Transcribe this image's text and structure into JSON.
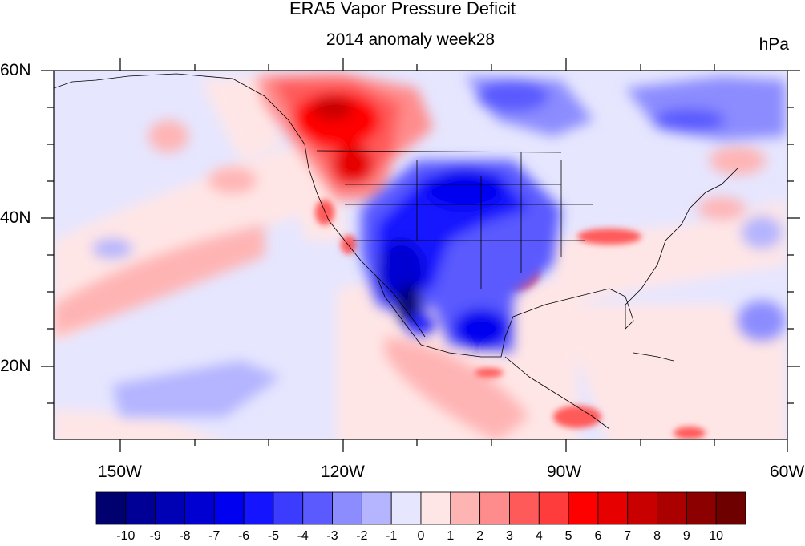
{
  "title": "ERA5 Vapor Pressure Deficit",
  "subtitle": "2014 anomaly week28",
  "units": "hPa",
  "lat_labels": [
    "60N",
    "40N",
    "20N"
  ],
  "lon_labels": [
    "150W",
    "120W",
    "90W",
    "60W"
  ],
  "colorbar": {
    "labels": [
      "-10",
      "-9",
      "-8",
      "-7",
      "-6",
      "-5",
      "-4",
      "-3",
      "-2",
      "-1",
      "0",
      "1",
      "2",
      "3",
      "4",
      "5",
      "6",
      "7",
      "8",
      "9",
      "10"
    ],
    "colors": [
      "#00006e",
      "#000096",
      "#0000b4",
      "#0000d2",
      "#0000f0",
      "#1414ff",
      "#3c3cff",
      "#5a5aff",
      "#8c8cff",
      "#b4b4ff",
      "#e6e6ff",
      "#ffe6e6",
      "#ffb4b4",
      "#ff8c8c",
      "#ff5a5a",
      "#ff3c3c",
      "#ff0000",
      "#e60000",
      "#c80000",
      "#aa0000",
      "#8c0000",
      "#6e0000"
    ]
  }
}
